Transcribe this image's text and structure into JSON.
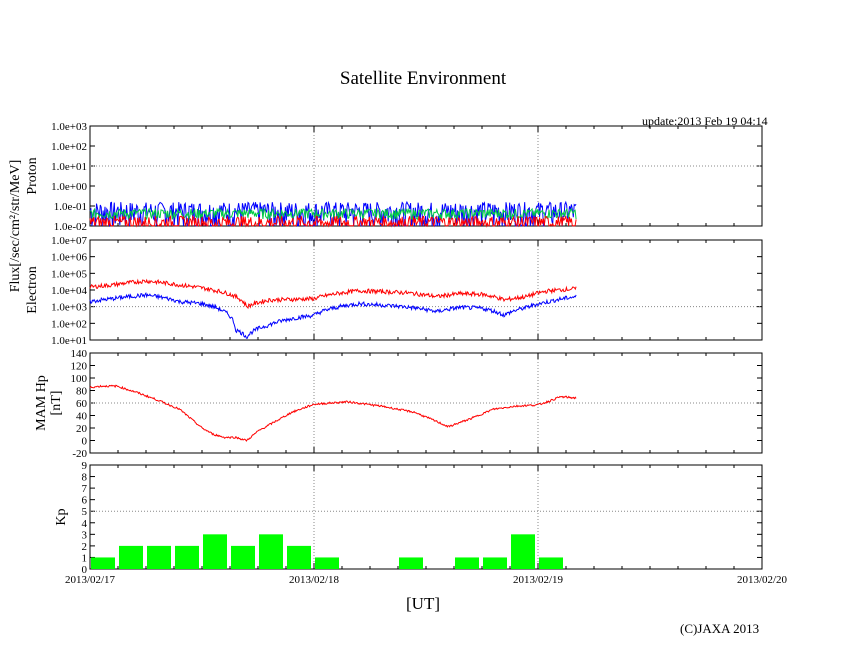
{
  "header": {
    "title": "Satellite Environment",
    "update": "update:2013 Feb 19 04:14"
  },
  "footer": {
    "xlabel": "[UT]",
    "copyright": "(C)JAXA 2013"
  },
  "colors": {
    "red": "#ff0000",
    "blue": "#0000ff",
    "green": "#00cc44",
    "bar": "#00ff00",
    "grid": "#888888"
  },
  "shared_axis": {
    "x_ticks": [
      "2013/02/17",
      "2013/02/18",
      "2013/02/19",
      "2013/02/20"
    ],
    "x_range_days": [
      0,
      3
    ]
  },
  "flux_label": "Flux[/sec/cm²/str/MeV]",
  "chart_data": [
    {
      "type": "line",
      "panel": "proton",
      "ylabel": "Proton",
      "yscale": "log",
      "ylim": [
        0.01,
        1000
      ],
      "yticks": [
        "1.0e-02",
        "1.0e-01",
        "1.0e+00",
        "1.0e+01",
        "1.0e+02",
        "1.0e+03"
      ],
      "x_end_day": 2.17,
      "series": [
        {
          "color": "blue",
          "base": 0.06,
          "noise": 0.5
        },
        {
          "color": "green",
          "base": 0.045,
          "noise": 0.2
        },
        {
          "color": "red",
          "base": 0.015,
          "noise": 0.35
        }
      ]
    },
    {
      "type": "line",
      "panel": "electron",
      "ylabel": "Electron",
      "yscale": "log",
      "ylim": [
        10,
        10000000
      ],
      "yticks": [
        "1.0e+01",
        "1.0e+02",
        "1.0e+03",
        "1.0e+04",
        "1.0e+05",
        "1.0e+06",
        "1.0e+07"
      ],
      "series": [
        {
          "color": "red",
          "x": [
            0,
            0.1,
            0.25,
            0.4,
            0.55,
            0.65,
            0.7,
            0.8,
            1.0,
            1.2,
            1.4,
            1.55,
            1.65,
            1.75,
            1.85,
            1.95,
            2.05,
            2.17
          ],
          "y": [
            15000,
            20000,
            35000,
            20000,
            10000,
            4000,
            1000,
            2500,
            3000,
            9000,
            7000,
            4000,
            6000,
            5500,
            2500,
            4000,
            9000,
            12000
          ]
        },
        {
          "color": "blue",
          "x": [
            0,
            0.1,
            0.25,
            0.4,
            0.5,
            0.6,
            0.65,
            0.7,
            0.8,
            1.0,
            1.2,
            1.4,
            1.55,
            1.65,
            1.75,
            1.85,
            1.95,
            2.05,
            2.17
          ],
          "y": [
            2000,
            3000,
            5000,
            2000,
            1500,
            500,
            40,
            15,
            80,
            300,
            1500,
            1000,
            500,
            900,
            800,
            300,
            900,
            2000,
            4000
          ]
        }
      ]
    },
    {
      "type": "line",
      "panel": "mam",
      "ylabel": "MAM Hp",
      "ylabel2": "[nT]",
      "yscale": "linear",
      "ylim": [
        -20,
        140
      ],
      "yticks": [
        "-20",
        "0",
        "20",
        "40",
        "60",
        "80",
        "100",
        "120",
        "140"
      ],
      "series": [
        {
          "color": "red",
          "x": [
            0,
            0.05,
            0.12,
            0.2,
            0.3,
            0.4,
            0.45,
            0.5,
            0.55,
            0.6,
            0.65,
            0.7,
            0.75,
            0.8,
            0.9,
            1.0,
            1.15,
            1.3,
            1.45,
            1.55,
            1.6,
            1.7,
            1.8,
            1.9,
            2.0,
            2.05,
            2.1,
            2.17
          ],
          "y": [
            85,
            87,
            87,
            78,
            65,
            50,
            35,
            20,
            10,
            5,
            5,
            0,
            15,
            25,
            45,
            58,
            62,
            55,
            45,
            30,
            22,
            35,
            50,
            55,
            57,
            63,
            70,
            68
          ]
        }
      ]
    },
    {
      "type": "bar",
      "panel": "kp",
      "ylabel": "Kp",
      "ylim": [
        0,
        9
      ],
      "yticks": [
        "0",
        "1",
        "2",
        "3",
        "4",
        "5",
        "6",
        "7",
        "8",
        "9"
      ],
      "bar_width_days": 0.125,
      "x_start_day": 0,
      "values": [
        1,
        2,
        2,
        2,
        3,
        2,
        3,
        2,
        1,
        0,
        0,
        1,
        0,
        1,
        1,
        3,
        1
      ]
    }
  ]
}
